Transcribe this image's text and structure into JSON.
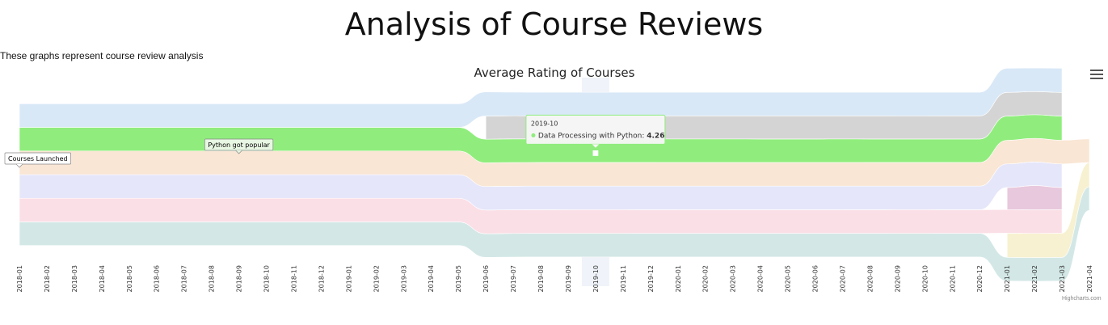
{
  "page": {
    "title": "Analysis of Course Reviews",
    "subtitle": "These graphs represent course review analysis"
  },
  "chart_data": {
    "type": "area",
    "subtype": "streamgraph",
    "title": "Average Rating of Courses",
    "xlabel": "",
    "ylabel": "",
    "categories": [
      "2018-01",
      "2018-02",
      "2018-03",
      "2018-04",
      "2018-05",
      "2018-06",
      "2018-07",
      "2018-08",
      "2018-09",
      "2018-10",
      "2018-11",
      "2018-12",
      "2019-01",
      "2019-02",
      "2019-03",
      "2019-04",
      "2019-05",
      "2019-06",
      "2019-07",
      "2019-08",
      "2019-09",
      "2019-10",
      "2019-11",
      "2019-12",
      "2020-01",
      "2020-02",
      "2020-03",
      "2020-04",
      "2020-05",
      "2020-06",
      "2020-07",
      "2020-08",
      "2020-09",
      "2020-10",
      "2020-11",
      "2020-12",
      "2021-01",
      "2021-02",
      "2021-03",
      "2021-04"
    ],
    "series": [
      {
        "color": "#d9e8f7",
        "values": [
          4.3,
          4.3,
          4.3,
          4.3,
          4.3,
          4.3,
          4.3,
          4.3,
          4.3,
          4.3,
          4.3,
          4.3,
          4.3,
          4.3,
          4.3,
          4.3,
          4.3,
          4.4,
          4.3,
          4.3,
          4.3,
          4.3,
          4.3,
          4.3,
          4.3,
          4.3,
          4.3,
          4.3,
          4.3,
          4.3,
          4.3,
          4.3,
          4.3,
          4.3,
          4.3,
          4.3,
          4.4,
          4.3,
          4.4,
          null
        ]
      },
      {
        "color": "#d4d4d4",
        "values": [
          null,
          null,
          null,
          null,
          null,
          null,
          null,
          null,
          null,
          null,
          null,
          null,
          null,
          null,
          null,
          null,
          null,
          4.2,
          4.2,
          4.2,
          4.2,
          4.2,
          4.2,
          4.2,
          4.2,
          4.2,
          4.2,
          4.2,
          4.2,
          4.2,
          4.2,
          4.2,
          4.2,
          4.2,
          4.2,
          4.2,
          4.3,
          4.2,
          4.3,
          null
        ]
      },
      {
        "name": "Data Processing with Python",
        "color": "#90ed7d",
        "values": [
          4.3,
          4.3,
          4.3,
          4.3,
          4.3,
          4.3,
          4.3,
          4.3,
          4.3,
          4.3,
          4.3,
          4.3,
          4.3,
          4.3,
          4.3,
          4.3,
          4.3,
          4.3,
          4.3,
          4.27,
          4.26,
          4.26,
          4.26,
          4.27,
          4.28,
          4.28,
          4.28,
          4.27,
          4.27,
          4.27,
          4.28,
          4.27,
          4.26,
          4.26,
          4.27,
          4.27,
          4.4,
          4.3,
          4.4,
          null
        ]
      },
      {
        "color": "#f9e6d4",
        "values": [
          4.3,
          4.3,
          4.3,
          4.3,
          4.3,
          4.3,
          4.3,
          4.3,
          4.3,
          4.3,
          4.3,
          4.3,
          4.3,
          4.3,
          4.3,
          4.3,
          4.3,
          4.3,
          4.3,
          4.3,
          4.3,
          4.3,
          4.3,
          4.3,
          4.3,
          4.3,
          4.3,
          4.3,
          4.3,
          4.3,
          4.3,
          4.3,
          4.3,
          4.3,
          4.3,
          4.3,
          4.3,
          4.3,
          4.3,
          4.3
        ]
      },
      {
        "color": "#e6e6fa",
        "values": [
          4.3,
          4.3,
          4.3,
          4.3,
          4.3,
          4.3,
          4.3,
          4.3,
          4.3,
          4.3,
          4.3,
          4.3,
          4.3,
          4.3,
          4.3,
          4.3,
          4.3,
          4.3,
          4.3,
          4.3,
          4.3,
          4.3,
          4.3,
          4.3,
          4.3,
          4.3,
          4.3,
          4.3,
          4.3,
          4.3,
          4.3,
          4.3,
          4.3,
          4.3,
          4.3,
          4.3,
          4.3,
          4.3,
          4.3,
          null
        ]
      },
      {
        "color": "#e8c8dc",
        "values": [
          null,
          null,
          null,
          null,
          null,
          null,
          null,
          null,
          null,
          null,
          null,
          null,
          null,
          null,
          null,
          null,
          null,
          null,
          null,
          null,
          null,
          null,
          null,
          null,
          null,
          null,
          null,
          null,
          null,
          null,
          null,
          null,
          null,
          null,
          null,
          null,
          4.0,
          4.4,
          4.0,
          null
        ]
      },
      {
        "color": "#fbdfe6",
        "values": [
          4.3,
          4.3,
          4.3,
          4.3,
          4.3,
          4.3,
          4.3,
          4.3,
          4.3,
          4.3,
          4.3,
          4.3,
          4.3,
          4.3,
          4.3,
          4.3,
          4.3,
          4.3,
          4.3,
          4.3,
          4.3,
          4.3,
          4.3,
          4.3,
          4.3,
          4.3,
          4.3,
          4.3,
          4.3,
          4.3,
          4.3,
          4.3,
          4.3,
          4.3,
          4.3,
          4.3,
          4.3,
          4.3,
          4.3,
          null
        ]
      },
      {
        "color": "#f7f1d1",
        "values": [
          null,
          null,
          null,
          null,
          null,
          null,
          null,
          null,
          null,
          null,
          null,
          null,
          null,
          null,
          null,
          null,
          null,
          null,
          null,
          null,
          null,
          null,
          null,
          null,
          null,
          null,
          null,
          null,
          null,
          null,
          null,
          null,
          null,
          null,
          null,
          null,
          4.4,
          4.4,
          4.4,
          4.4
        ]
      },
      {
        "color": "#d3e8e6",
        "values": [
          4.3,
          4.3,
          4.3,
          4.3,
          4.3,
          4.3,
          4.3,
          4.3,
          4.3,
          4.3,
          4.3,
          4.3,
          4.3,
          4.3,
          4.3,
          4.3,
          4.3,
          4.3,
          4.3,
          4.3,
          4.3,
          4.3,
          4.3,
          4.3,
          4.3,
          4.3,
          4.3,
          4.3,
          4.3,
          4.3,
          4.3,
          4.3,
          4.3,
          4.3,
          4.3,
          4.3,
          4.3,
          4.3,
          4.3,
          4.3
        ]
      }
    ],
    "annotations": [
      {
        "text": "Courses Launched",
        "category": "2018-01"
      },
      {
        "text": "Python got popular",
        "category": "2018-09"
      }
    ],
    "tooltip": {
      "header": "2019-10",
      "series": "Data Processing with Python",
      "value": "4.26",
      "category": "2019-10"
    },
    "highlight_category": "2019-10",
    "legend": "none",
    "grid": false
  },
  "ui": {
    "menu_icon": "hamburger-menu-icon",
    "credits": "Highcharts.com"
  }
}
